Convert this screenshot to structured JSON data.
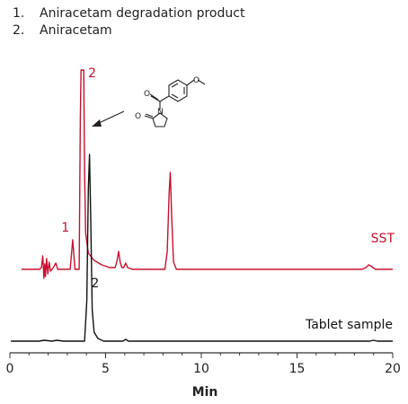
{
  "legend": [
    {
      "num": "1.",
      "label": "Aniracetam degradation product"
    },
    {
      "num": "2.",
      "label": "Aniracetam"
    }
  ],
  "chart_data": {
    "type": "line",
    "xlabel": "Min",
    "ylabel": "",
    "xlim": [
      0,
      20
    ],
    "x_ticks": [
      0,
      5,
      10,
      15,
      20
    ],
    "x_tick_labels": [
      "0",
      "5",
      "10",
      "15",
      "20"
    ],
    "grid": false,
    "colors": {
      "sst": "#c8102e",
      "tablet": "#111111",
      "axis": "#333333"
    },
    "series": [
      {
        "name": "SST",
        "color": "#c8102e",
        "trace": [
          [
            0.6,
            0
          ],
          [
            1.55,
            0
          ],
          [
            1.65,
            2
          ],
          [
            1.72,
            15
          ],
          [
            1.78,
            -10
          ],
          [
            1.82,
            6
          ],
          [
            1.86,
            -8
          ],
          [
            1.92,
            12
          ],
          [
            1.98,
            -5
          ],
          [
            2.05,
            8
          ],
          [
            2.12,
            -2
          ],
          [
            2.2,
            0
          ],
          [
            2.3,
            3
          ],
          [
            2.4,
            7
          ],
          [
            2.5,
            0
          ],
          [
            3.15,
            0
          ],
          [
            3.28,
            33
          ],
          [
            3.4,
            0
          ],
          [
            3.62,
            0
          ],
          [
            3.68,
            170
          ],
          [
            3.72,
            222
          ],
          [
            3.86,
            222
          ],
          [
            3.9,
            110
          ],
          [
            3.96,
            40
          ],
          [
            4.1,
            18
          ],
          [
            4.4,
            10
          ],
          [
            4.8,
            5
          ],
          [
            5.2,
            2
          ],
          [
            5.5,
            2
          ],
          [
            5.6,
            10
          ],
          [
            5.68,
            20
          ],
          [
            5.76,
            8
          ],
          [
            5.85,
            2
          ],
          [
            5.95,
            2
          ],
          [
            6.05,
            7
          ],
          [
            6.15,
            2
          ],
          [
            6.4,
            0
          ],
          [
            8.1,
            0
          ],
          [
            8.22,
            20
          ],
          [
            8.32,
            85
          ],
          [
            8.38,
            108
          ],
          [
            8.45,
            60
          ],
          [
            8.55,
            8
          ],
          [
            8.7,
            0
          ],
          [
            18.4,
            0
          ],
          [
            18.6,
            2
          ],
          [
            18.75,
            5
          ],
          [
            18.9,
            3
          ],
          [
            19.1,
            0
          ],
          [
            20.0,
            0
          ]
        ],
        "peak_labels": [
          {
            "label": "1",
            "x": 2.9,
            "y": 42
          },
          {
            "label": "2",
            "x": 4.3,
            "y": 214
          }
        ],
        "trace_label": "SST"
      },
      {
        "name": "Tablet sample",
        "color": "#111111",
        "trace": [
          [
            0.05,
            0
          ],
          [
            1.5,
            0
          ],
          [
            1.8,
            1
          ],
          [
            2.2,
            0
          ],
          [
            2.45,
            1
          ],
          [
            2.8,
            0
          ],
          [
            3.9,
            0
          ],
          [
            4.02,
            45
          ],
          [
            4.1,
            170
          ],
          [
            4.16,
            208
          ],
          [
            4.22,
            140
          ],
          [
            4.3,
            35
          ],
          [
            4.4,
            10
          ],
          [
            4.6,
            3
          ],
          [
            4.9,
            0
          ],
          [
            5.9,
            0
          ],
          [
            6.05,
            2
          ],
          [
            6.2,
            0
          ],
          [
            18.8,
            0
          ],
          [
            19.0,
            1
          ],
          [
            19.2,
            0
          ],
          [
            20.0,
            0
          ]
        ],
        "peak_labels": [
          {
            "label": "2",
            "x": 4.45,
            "y": 60
          }
        ],
        "trace_label": "Tablet sample"
      }
    ],
    "annotation": {
      "type": "molecule-structure",
      "points_to_x": 4.0
    }
  }
}
